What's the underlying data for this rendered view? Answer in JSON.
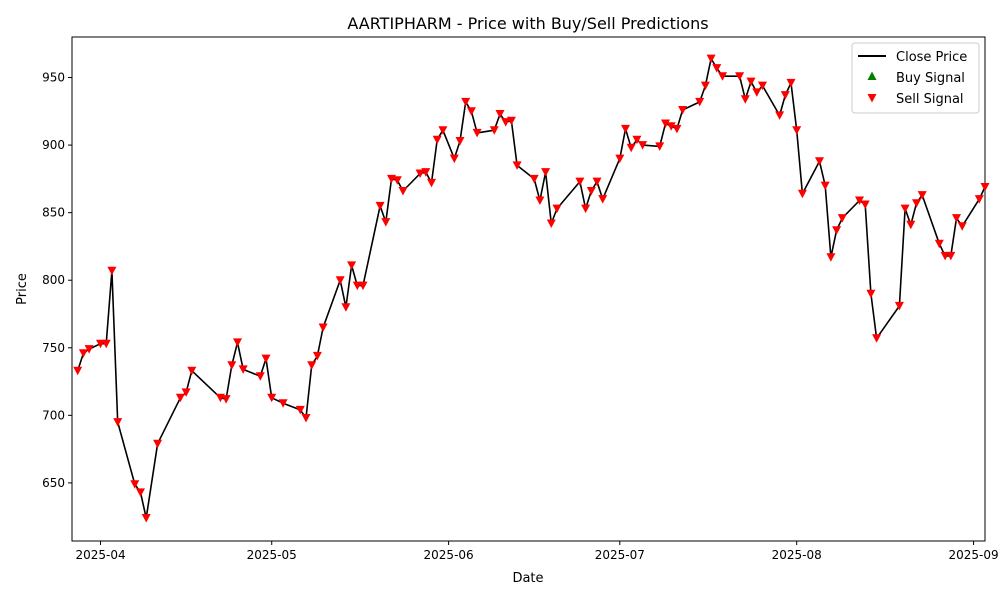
{
  "chart_data": {
    "type": "line",
    "title": "AARTIPHARM - Price with Buy/Sell Predictions",
    "xlabel": "Date",
    "ylabel": "Price",
    "x_ticks": [
      "2025-04",
      "2025-05",
      "2025-06",
      "2025-07",
      "2025-08",
      "2025-09"
    ],
    "y_ticks": [
      650,
      700,
      750,
      800,
      850,
      900,
      950
    ],
    "xlim": [
      "2025-03-27",
      "2025-09-03"
    ],
    "ylim": [
      607,
      980
    ],
    "grid": false,
    "legend_position": "top-right",
    "legend": [
      "Close Price",
      "Buy Signal",
      "Sell Signal"
    ],
    "colors": {
      "close": "#000000",
      "buy": "#008000",
      "sell": "#ff0000"
    },
    "series": [
      {
        "name": "Close Price",
        "points": [
          [
            "2025-03-28",
            733
          ],
          [
            "2025-03-29",
            746
          ],
          [
            "2025-03-30",
            749
          ],
          [
            "2025-04-01",
            753
          ],
          [
            "2025-04-02",
            753
          ],
          [
            "2025-04-03",
            807
          ],
          [
            "2025-04-04",
            695
          ],
          [
            "2025-04-07",
            649
          ],
          [
            "2025-04-08",
            643
          ],
          [
            "2025-04-09",
            624
          ],
          [
            "2025-04-11",
            679
          ],
          [
            "2025-04-15",
            713
          ],
          [
            "2025-04-16",
            717
          ],
          [
            "2025-04-17",
            733
          ],
          [
            "2025-04-22",
            713
          ],
          [
            "2025-04-23",
            712
          ],
          [
            "2025-04-24",
            737
          ],
          [
            "2025-04-25",
            754
          ],
          [
            "2025-04-26",
            734
          ],
          [
            "2025-04-29",
            729
          ],
          [
            "2025-04-30",
            742
          ],
          [
            "2025-05-01",
            713
          ],
          [
            "2025-05-03",
            709
          ],
          [
            "2025-05-06",
            704
          ],
          [
            "2025-05-07",
            698
          ],
          [
            "2025-05-08",
            737
          ],
          [
            "2025-05-09",
            744
          ],
          [
            "2025-05-10",
            765
          ],
          [
            "2025-05-13",
            800
          ],
          [
            "2025-05-14",
            780
          ],
          [
            "2025-05-15",
            811
          ],
          [
            "2025-05-16",
            796
          ],
          [
            "2025-05-17",
            796
          ],
          [
            "2025-05-20",
            855
          ],
          [
            "2025-05-21",
            843
          ],
          [
            "2025-05-22",
            875
          ],
          [
            "2025-05-23",
            874
          ],
          [
            "2025-05-24",
            866
          ],
          [
            "2025-05-27",
            879
          ],
          [
            "2025-05-28",
            880
          ],
          [
            "2025-05-29",
            872
          ],
          [
            "2025-05-30",
            904
          ],
          [
            "2025-05-31",
            911
          ],
          [
            "2025-06-02",
            890
          ],
          [
            "2025-06-03",
            903
          ],
          [
            "2025-06-04",
            932
          ],
          [
            "2025-06-05",
            925
          ],
          [
            "2025-06-06",
            909
          ],
          [
            "2025-06-09",
            911
          ],
          [
            "2025-06-10",
            923
          ],
          [
            "2025-06-11",
            917
          ],
          [
            "2025-06-12",
            918
          ],
          [
            "2025-06-13",
            885
          ],
          [
            "2025-06-16",
            875
          ],
          [
            "2025-06-17",
            859
          ],
          [
            "2025-06-18",
            880
          ],
          [
            "2025-06-19",
            842
          ],
          [
            "2025-06-20",
            853
          ],
          [
            "2025-06-24",
            873
          ],
          [
            "2025-06-25",
            853
          ],
          [
            "2025-06-26",
            866
          ],
          [
            "2025-06-27",
            873
          ],
          [
            "2025-06-28",
            860
          ],
          [
            "2025-07-01",
            890
          ],
          [
            "2025-07-02",
            912
          ],
          [
            "2025-07-03",
            898
          ],
          [
            "2025-07-04",
            904
          ],
          [
            "2025-07-05",
            900
          ],
          [
            "2025-07-08",
            899
          ],
          [
            "2025-07-09",
            916
          ],
          [
            "2025-07-10",
            914
          ],
          [
            "2025-07-11",
            912
          ],
          [
            "2025-07-12",
            926
          ],
          [
            "2025-07-15",
            932
          ],
          [
            "2025-07-16",
            944
          ],
          [
            "2025-07-17",
            964
          ],
          [
            "2025-07-18",
            957
          ],
          [
            "2025-07-19",
            951
          ],
          [
            "2025-07-22",
            951
          ],
          [
            "2025-07-23",
            934
          ],
          [
            "2025-07-24",
            947
          ],
          [
            "2025-07-25",
            939
          ],
          [
            "2025-07-26",
            944
          ],
          [
            "2025-07-29",
            922
          ],
          [
            "2025-07-30",
            937
          ],
          [
            "2025-07-31",
            946
          ],
          [
            "2025-08-01",
            911
          ],
          [
            "2025-08-02",
            864
          ],
          [
            "2025-08-05",
            888
          ],
          [
            "2025-08-06",
            870
          ],
          [
            "2025-08-07",
            817
          ],
          [
            "2025-08-08",
            837
          ],
          [
            "2025-08-09",
            846
          ],
          [
            "2025-08-12",
            859
          ],
          [
            "2025-08-13",
            856
          ],
          [
            "2025-08-14",
            790
          ],
          [
            "2025-08-15",
            757
          ],
          [
            "2025-08-19",
            781
          ],
          [
            "2025-08-20",
            853
          ],
          [
            "2025-08-21",
            841
          ],
          [
            "2025-08-22",
            857
          ],
          [
            "2025-08-23",
            863
          ],
          [
            "2025-08-26",
            827
          ],
          [
            "2025-08-27",
            818
          ],
          [
            "2025-08-28",
            818
          ],
          [
            "2025-08-29",
            846
          ],
          [
            "2025-08-30",
            840
          ],
          [
            "2025-09-02",
            860
          ],
          [
            "2025-09-03",
            869
          ]
        ]
      },
      {
        "name": "Buy Signal",
        "points": []
      },
      {
        "name": "Sell Signal",
        "points": "all Close Price points"
      }
    ]
  }
}
